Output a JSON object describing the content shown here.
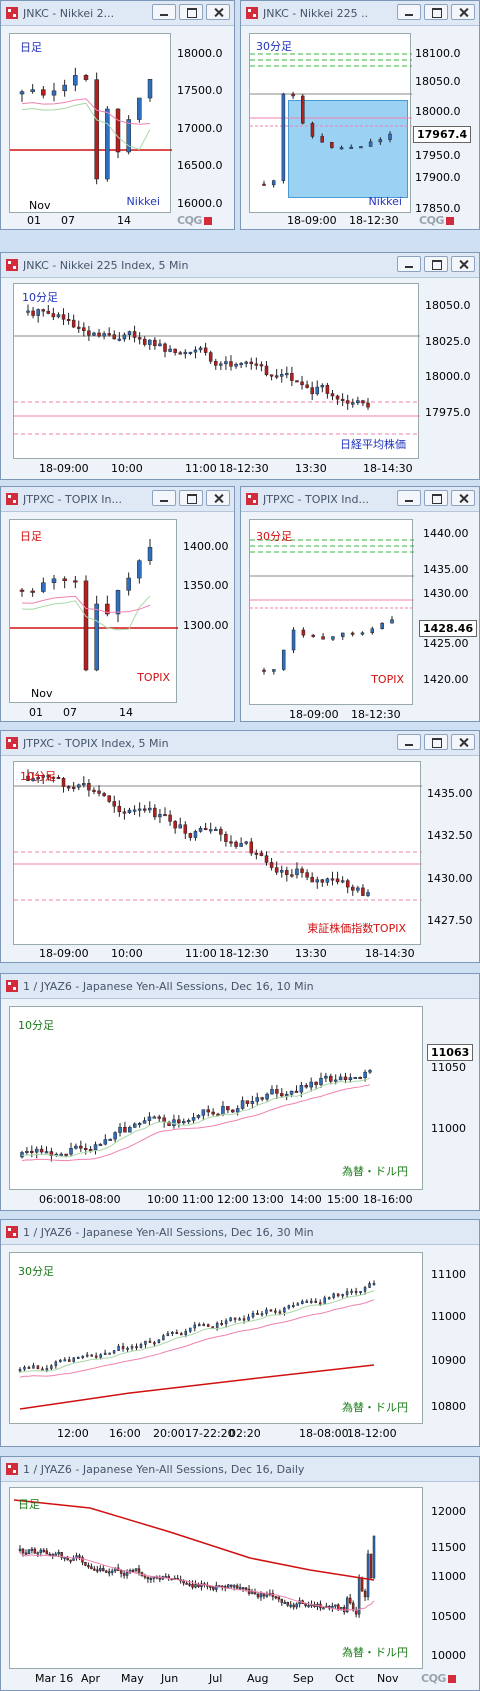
{
  "panels": [
    {
      "key": "p1",
      "title": "JNKC - Nikkei 2...",
      "period": "日足",
      "label": "Nikkei",
      "prices": [
        "18000.0",
        "17500.0",
        "17000.0",
        "16500.0",
        "16000.0"
      ],
      "xlabels": [
        "Nov",
        "01",
        "07",
        "14"
      ]
    },
    {
      "key": "p2",
      "title": "JNKC - Nikkei 225 ...",
      "period": "30分足",
      "label": "Nikkei",
      "current": "17967.4",
      "prices": [
        "18100.0",
        "18050.0",
        "18000.0",
        "17950.0",
        "17900.0",
        "17850.0"
      ],
      "xlabels": [
        "18-09:00",
        "18-12:30"
      ]
    },
    {
      "key": "p3",
      "title": "JNKC - Nikkei 225 Index, 5 Min",
      "period": "10分足",
      "label": "日経平均株価",
      "prices": [
        "18050.0",
        "18025.0",
        "18000.0",
        "17975.0"
      ],
      "xlabels": [
        "18-09:00",
        "10:00",
        "11:00",
        "18-12:30",
        "13:30",
        "18-14:30"
      ]
    },
    {
      "key": "p4",
      "title": "JTPXC - TOPIX In...",
      "period": "日足",
      "label": "TOPIX",
      "prices": [
        "1400.00",
        "1350.00",
        "1300.00"
      ],
      "xlabels": [
        "Nov",
        "01",
        "07",
        "14"
      ]
    },
    {
      "key": "p5",
      "title": "JTPXC - TOPIX Ind...",
      "period": "30分足",
      "label": "TOPIX",
      "current": "1428.46",
      "prices": [
        "1440.00",
        "1435.00",
        "1430.00",
        "1425.00",
        "1420.00"
      ],
      "xlabels": [
        "18-09:00",
        "18-12:30"
      ]
    },
    {
      "key": "p6",
      "title": "JTPXC - TOPIX Index, 5 Min",
      "period": "10分足",
      "label": "東証株価指数TOPIX",
      "prices": [
        "1435.00",
        "1432.50",
        "1430.00",
        "1427.50"
      ],
      "xlabels": [
        "18-09:00",
        "10:00",
        "11:00",
        "18-12:30",
        "13:30",
        "18-14:30"
      ]
    },
    {
      "key": "p7",
      "title": "1 / JYAZ6 - Japanese Yen-All Sessions, Dec 16, 10 Min",
      "period": "10分足",
      "label": "為替・ドル円",
      "current": "11063",
      "prices": [
        "11050",
        "11000"
      ],
      "xlabels": [
        "06:00",
        "18-08:00",
        "10:00",
        "11:00",
        "12:00",
        "13:00",
        "14:00",
        "15:00",
        "18-16:00"
      ]
    },
    {
      "key": "p8",
      "title": "1 / JYAZ6 - Japanese Yen-All Sessions, Dec 16, 30 Min",
      "period": "30分足",
      "label": "為替・ドル円",
      "prices": [
        "11100",
        "11000",
        "10900",
        "10800"
      ],
      "xlabels": [
        "12:00",
        "16:00",
        "20:00",
        "17-22:20",
        "02:20",
        "18-08:00",
        "18-12:00"
      ]
    },
    {
      "key": "p9",
      "title": "1 / JYAZ6 - Japanese Yen-All Sessions, Dec 16, Daily",
      "period": "日足",
      "label": "為替・ドル円",
      "prices": [
        "12000",
        "11500",
        "11000",
        "10500",
        "10000"
      ],
      "xlabels": [
        "Mar 16",
        "Apr",
        "May",
        "Jun",
        "Jul",
        "Aug",
        "Sep",
        "Oct",
        "Nov"
      ]
    }
  ],
  "brand": "CQG",
  "colors": {
    "up": "#2f6fbf",
    "down": "#b41f1f",
    "ma_pink": "#f080b0",
    "ma_green": "#a8d8a8",
    "ma_red": "#d01010"
  }
}
